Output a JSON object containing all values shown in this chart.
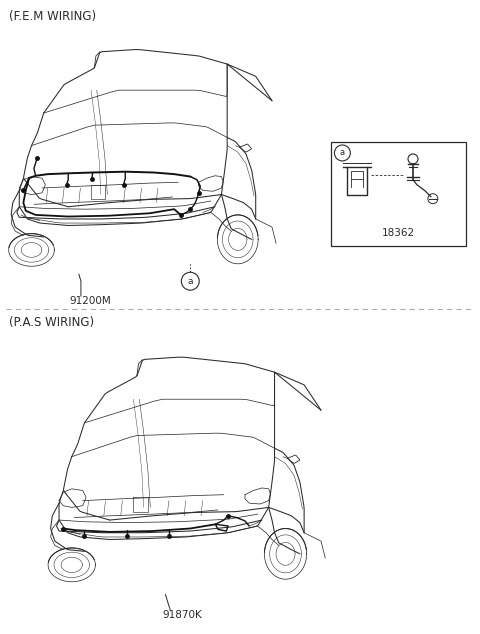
{
  "bg_color": "#ffffff",
  "line_color": "#2a2a2a",
  "dashed_line_color": "#aaaaaa",
  "fig_width": 4.8,
  "fig_height": 6.34,
  "dpi": 100,
  "top_label": "(F.E.M WIRING)",
  "bottom_label": "(P.A.S WIRING)",
  "part1_label": "91200M",
  "part2_label": "18362",
  "part3_label": "91870K"
}
